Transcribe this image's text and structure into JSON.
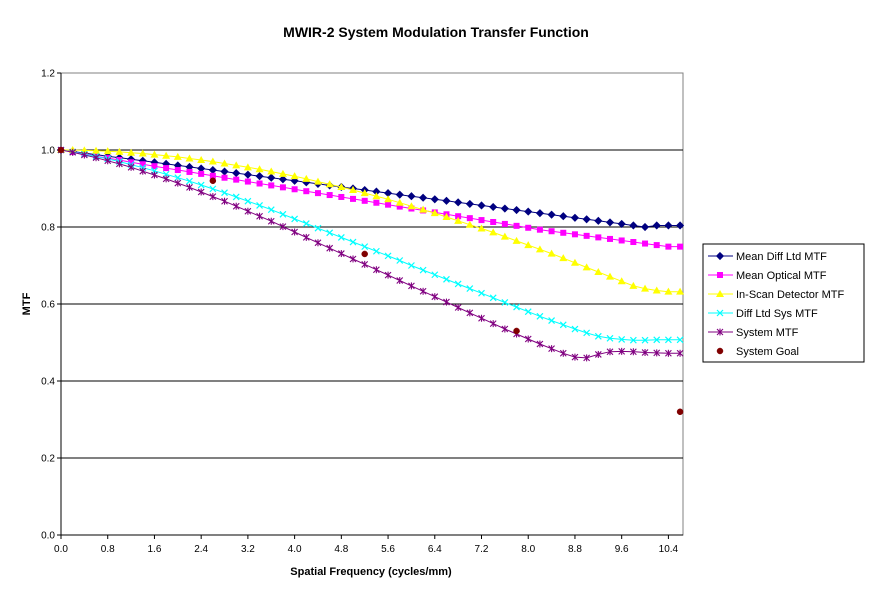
{
  "chart_data": {
    "type": "line",
    "title": "MWIR-2 System Modulation Transfer Function",
    "xlabel": "Spatial Frequency (cycles/mm)",
    "ylabel": "MTF",
    "xlim": [
      0,
      10.65
    ],
    "ylim": [
      0,
      1.2
    ],
    "x_ticks": [
      "0.0",
      "0.8",
      "1.6",
      "2.4",
      "3.2",
      "4.0",
      "4.8",
      "5.6",
      "6.4",
      "7.2",
      "8.0",
      "8.8",
      "9.6",
      "10.4"
    ],
    "y_ticks": [
      "0.0",
      "0.2",
      "0.4",
      "0.6",
      "0.8",
      "1.0",
      "1.2"
    ],
    "grid": "horizontal",
    "legend_position": "right",
    "series": [
      {
        "name": "Mean Diff Ltd MTF",
        "color": "#000080",
        "marker": "diamond",
        "x": [
          0,
          0.2,
          0.4,
          0.6,
          0.8,
          1.0,
          1.2,
          1.4,
          1.6,
          1.8,
          2.0,
          2.2,
          2.4,
          2.6,
          2.8,
          3.0,
          3.2,
          3.4,
          3.6,
          3.8,
          4.0,
          4.2,
          4.4,
          4.6,
          4.8,
          5.0,
          5.2,
          5.4,
          5.6,
          5.8,
          6.0,
          6.2,
          6.4,
          6.6,
          6.8,
          7.0,
          7.2,
          7.4,
          7.6,
          7.8,
          8.0,
          8.2,
          8.4,
          8.6,
          8.8,
          9.0,
          9.2,
          9.4,
          9.6,
          9.8,
          10.0,
          10.2,
          10.4,
          10.6
        ],
        "values": [
          1.0,
          0.996,
          0.992,
          0.988,
          0.984,
          0.98,
          0.976,
          0.972,
          0.968,
          0.964,
          0.96,
          0.956,
          0.952,
          0.948,
          0.944,
          0.94,
          0.936,
          0.932,
          0.928,
          0.924,
          0.92,
          0.916,
          0.912,
          0.908,
          0.904,
          0.9,
          0.896,
          0.892,
          0.888,
          0.884,
          0.88,
          0.876,
          0.872,
          0.868,
          0.864,
          0.86,
          0.856,
          0.852,
          0.848,
          0.844,
          0.84,
          0.836,
          0.832,
          0.828,
          0.824,
          0.82,
          0.816,
          0.812,
          0.808,
          0.804,
          0.8,
          0.804,
          0.804,
          0.804
        ]
      },
      {
        "name": "Mean Optical MTF",
        "color": "#FF00FF",
        "marker": "square",
        "x": [
          0,
          0.2,
          0.4,
          0.6,
          0.8,
          1.0,
          1.2,
          1.4,
          1.6,
          1.8,
          2.0,
          2.2,
          2.4,
          2.6,
          2.8,
          3.0,
          3.2,
          3.4,
          3.6,
          3.8,
          4.0,
          4.2,
          4.4,
          4.6,
          4.8,
          5.0,
          5.2,
          5.4,
          5.6,
          5.8,
          6.0,
          6.2,
          6.4,
          6.6,
          6.8,
          7.0,
          7.2,
          7.4,
          7.6,
          7.8,
          8.0,
          8.2,
          8.4,
          8.6,
          8.8,
          9.0,
          9.2,
          9.4,
          9.6,
          9.8,
          10.0,
          10.2,
          10.4,
          10.6
        ],
        "values": [
          1.0,
          0.995,
          0.99,
          0.984,
          0.979,
          0.974,
          0.968,
          0.963,
          0.958,
          0.953,
          0.948,
          0.943,
          0.938,
          0.933,
          0.928,
          0.923,
          0.918,
          0.913,
          0.908,
          0.903,
          0.898,
          0.893,
          0.888,
          0.883,
          0.878,
          0.873,
          0.868,
          0.863,
          0.858,
          0.853,
          0.848,
          0.843,
          0.838,
          0.833,
          0.828,
          0.823,
          0.818,
          0.813,
          0.808,
          0.803,
          0.798,
          0.793,
          0.789,
          0.785,
          0.781,
          0.777,
          0.773,
          0.769,
          0.765,
          0.761,
          0.757,
          0.753,
          0.749,
          0.749
        ]
      },
      {
        "name": "In-Scan Detector MTF",
        "color": "#FFFF00",
        "marker": "triangle",
        "x": [
          0,
          0.2,
          0.4,
          0.6,
          0.8,
          1.0,
          1.2,
          1.4,
          1.6,
          1.8,
          2.0,
          2.2,
          2.4,
          2.6,
          2.8,
          3.0,
          3.2,
          3.4,
          3.6,
          3.8,
          4.0,
          4.2,
          4.4,
          4.6,
          4.8,
          5.0,
          5.2,
          5.4,
          5.6,
          5.8,
          6.0,
          6.2,
          6.4,
          6.6,
          6.8,
          7.0,
          7.2,
          7.4,
          7.6,
          7.8,
          8.0,
          8.2,
          8.4,
          8.6,
          8.8,
          9.0,
          9.2,
          9.4,
          9.6,
          9.8,
          10.0,
          10.2,
          10.4,
          10.6
        ],
        "values": [
          1.0,
          1.0,
          0.999,
          0.998,
          0.997,
          0.995,
          0.993,
          0.991,
          0.988,
          0.985,
          0.982,
          0.978,
          0.974,
          0.97,
          0.965,
          0.96,
          0.955,
          0.95,
          0.944,
          0.938,
          0.932,
          0.925,
          0.918,
          0.911,
          0.904,
          0.896,
          0.888,
          0.88,
          0.872,
          0.863,
          0.854,
          0.845,
          0.836,
          0.826,
          0.816,
          0.806,
          0.796,
          0.786,
          0.775,
          0.764,
          0.753,
          0.742,
          0.731,
          0.719,
          0.707,
          0.695,
          0.683,
          0.671,
          0.659,
          0.647,
          0.64,
          0.635,
          0.632,
          0.632
        ]
      },
      {
        "name": "Diff Ltd Sys MTF",
        "color": "#00FFFF",
        "marker": "x",
        "x": [
          0,
          0.2,
          0.4,
          0.6,
          0.8,
          1.0,
          1.2,
          1.4,
          1.6,
          1.8,
          2.0,
          2.2,
          2.4,
          2.6,
          2.8,
          3.0,
          3.2,
          3.4,
          3.6,
          3.8,
          4.0,
          4.2,
          4.4,
          4.6,
          4.8,
          5.0,
          5.2,
          5.4,
          5.6,
          5.8,
          6.0,
          6.2,
          6.4,
          6.6,
          6.8,
          7.0,
          7.2,
          7.4,
          7.6,
          7.8,
          8.0,
          8.2,
          8.4,
          8.6,
          8.8,
          9.0,
          9.2,
          9.4,
          9.6,
          9.8,
          10.0,
          10.2,
          10.4,
          10.6
        ],
        "values": [
          1.0,
          0.995,
          0.989,
          0.983,
          0.977,
          0.97,
          0.962,
          0.954,
          0.946,
          0.937,
          0.928,
          0.919,
          0.909,
          0.899,
          0.889,
          0.878,
          0.867,
          0.856,
          0.845,
          0.833,
          0.821,
          0.809,
          0.797,
          0.785,
          0.773,
          0.761,
          0.749,
          0.737,
          0.725,
          0.713,
          0.7,
          0.688,
          0.676,
          0.664,
          0.652,
          0.64,
          0.628,
          0.616,
          0.604,
          0.592,
          0.58,
          0.568,
          0.557,
          0.546,
          0.535,
          0.525,
          0.516,
          0.511,
          0.508,
          0.506,
          0.506,
          0.507,
          0.507,
          0.507
        ]
      },
      {
        "name": "System MTF",
        "color": "#800080",
        "marker": "star",
        "x": [
          0,
          0.2,
          0.4,
          0.6,
          0.8,
          1.0,
          1.2,
          1.4,
          1.6,
          1.8,
          2.0,
          2.2,
          2.4,
          2.6,
          2.8,
          3.0,
          3.2,
          3.4,
          3.6,
          3.8,
          4.0,
          4.2,
          4.4,
          4.6,
          4.8,
          5.0,
          5.2,
          5.4,
          5.6,
          5.8,
          6.0,
          6.2,
          6.4,
          6.6,
          6.8,
          7.0,
          7.2,
          7.4,
          7.6,
          7.8,
          8.0,
          8.2,
          8.4,
          8.6,
          8.8,
          9.0,
          9.2,
          9.4,
          9.6,
          9.8,
          10.0,
          10.2,
          10.4,
          10.6
        ],
        "values": [
          1.0,
          0.994,
          0.987,
          0.98,
          0.972,
          0.964,
          0.955,
          0.945,
          0.935,
          0.925,
          0.914,
          0.903,
          0.891,
          0.879,
          0.867,
          0.854,
          0.841,
          0.828,
          0.815,
          0.801,
          0.787,
          0.773,
          0.759,
          0.745,
          0.731,
          0.717,
          0.703,
          0.689,
          0.675,
          0.661,
          0.647,
          0.633,
          0.619,
          0.605,
          0.591,
          0.577,
          0.563,
          0.549,
          0.535,
          0.522,
          0.509,
          0.496,
          0.484,
          0.472,
          0.462,
          0.46,
          0.469,
          0.476,
          0.477,
          0.476,
          0.474,
          0.473,
          0.472,
          0.472
        ]
      },
      {
        "name": "System Goal",
        "color": "#800000",
        "marker": "circle",
        "line": false,
        "x": [
          0,
          2.6,
          5.2,
          7.8,
          10.6
        ],
        "values": [
          1.0,
          0.92,
          0.73,
          0.53,
          0.32
        ]
      }
    ]
  }
}
